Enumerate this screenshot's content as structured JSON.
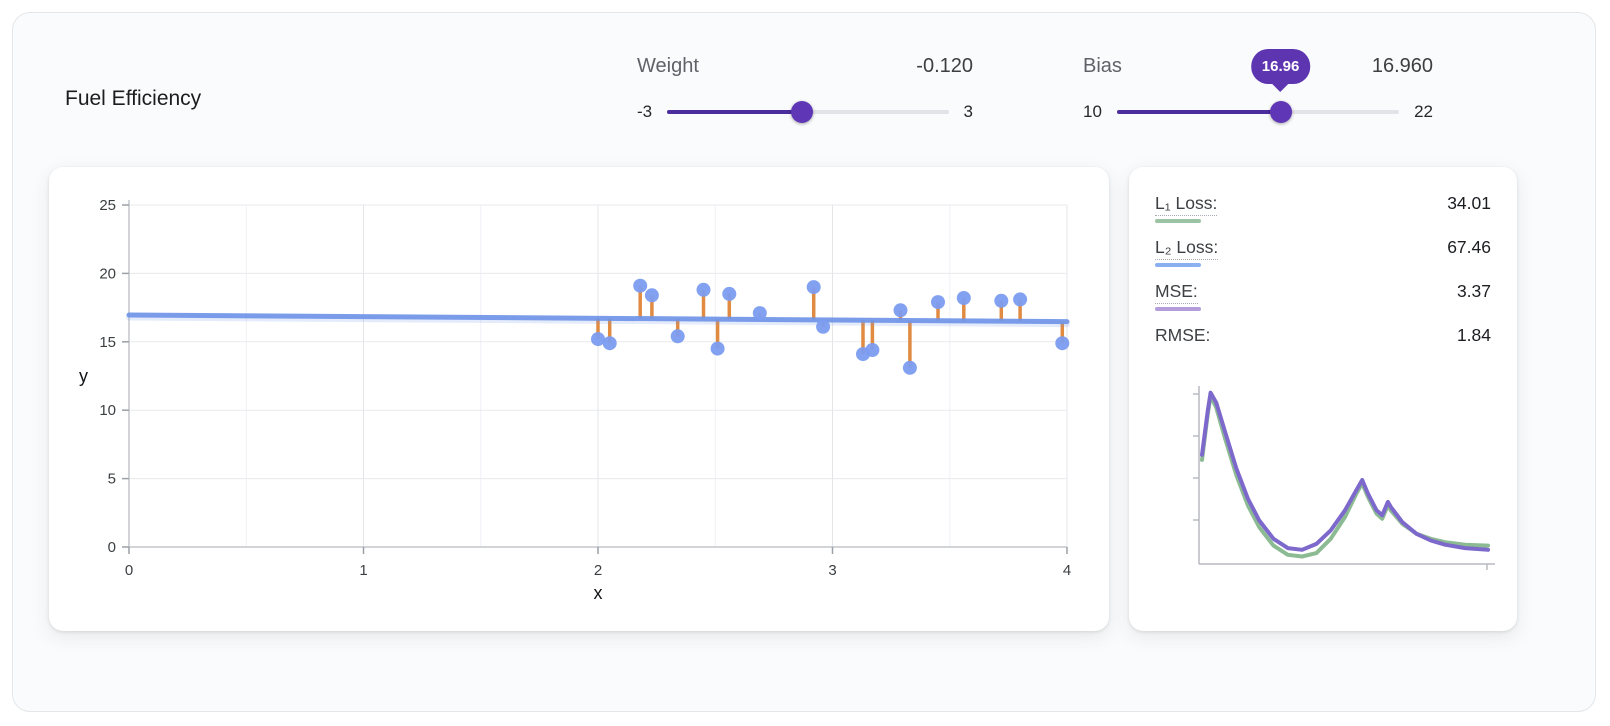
{
  "title": "Fuel Efficiency",
  "controls": {
    "weight": {
      "label": "Weight",
      "value": "-0.120",
      "min_label": "-3",
      "max_label": "3",
      "fraction": 0.48
    },
    "bias": {
      "label": "Bias",
      "value": "16.960",
      "min_label": "10",
      "max_label": "22",
      "fraction": 0.58,
      "tooltip": "16.96"
    }
  },
  "metrics": {
    "items": [
      {
        "label": "L₁ Loss:",
        "value": "34.01",
        "swatch": "#9cc4a4"
      },
      {
        "label": "L₂ Loss:",
        "value": "67.46",
        "swatch": "#8ab0f2"
      },
      {
        "label": "MSE:",
        "value": "3.37",
        "swatch": "#b39ddb"
      },
      {
        "label": "RMSE:",
        "value": "1.84",
        "swatch": ""
      }
    ]
  },
  "colors": {
    "accent_purple": "#5e35b1",
    "point_blue": "#7b9cf0",
    "line_blue": "#7095e8",
    "residual_orange": "#e08a42",
    "loss_green": "#8cbb93",
    "loss_purple": "#7d68cb"
  },
  "chart_data": [
    {
      "type": "scatter",
      "title": "Fuel Efficiency model fit",
      "xlabel": "x",
      "ylabel": "y",
      "xlim": [
        0,
        4
      ],
      "ylim": [
        0,
        25
      ],
      "xticks": [
        0,
        1,
        2,
        3,
        4
      ],
      "yticks": [
        0,
        5,
        10,
        15,
        20,
        25
      ],
      "grid": true,
      "model_line": {
        "weight": -0.12,
        "bias": 16.96
      },
      "points": [
        [
          2.0,
          15.2
        ],
        [
          2.05,
          14.9
        ],
        [
          2.18,
          19.1
        ],
        [
          2.23,
          18.4
        ],
        [
          2.34,
          15.4
        ],
        [
          2.45,
          18.8
        ],
        [
          2.51,
          14.5
        ],
        [
          2.56,
          18.5
        ],
        [
          2.69,
          17.1
        ],
        [
          2.92,
          19.0
        ],
        [
          2.96,
          16.1
        ],
        [
          3.13,
          14.1
        ],
        [
          3.17,
          14.4
        ],
        [
          3.29,
          17.3
        ],
        [
          3.33,
          13.1
        ],
        [
          3.45,
          17.9
        ],
        [
          3.56,
          18.2
        ],
        [
          3.72,
          18.0
        ],
        [
          3.8,
          18.1
        ],
        [
          3.98,
          14.9
        ]
      ]
    },
    {
      "type": "line",
      "title": "Loss history",
      "xlim": [
        0,
        100
      ],
      "ylim": [
        0,
        10
      ],
      "legend_position": "none",
      "series": [
        {
          "name": "L1 loss",
          "color": "#8cbb93",
          "points": [
            [
              0,
              5.9
            ],
            [
              2,
              8.6
            ],
            [
              3,
              9.7
            ],
            [
              5,
              9.0
            ],
            [
              8,
              7.2
            ],
            [
              12,
              5.0
            ],
            [
              16,
              3.2
            ],
            [
              20,
              1.9
            ],
            [
              25,
              0.8
            ],
            [
              30,
              0.25
            ],
            [
              35,
              0.15
            ],
            [
              40,
              0.35
            ],
            [
              45,
              1.2
            ],
            [
              50,
              2.5
            ],
            [
              54,
              3.9
            ],
            [
              56,
              4.5
            ],
            [
              58,
              3.7
            ],
            [
              61,
              2.7
            ],
            [
              63,
              2.4
            ],
            [
              65,
              3.2
            ],
            [
              66,
              2.9
            ],
            [
              70,
              2.1
            ],
            [
              75,
              1.5
            ],
            [
              80,
              1.2
            ],
            [
              85,
              1.0
            ],
            [
              92,
              0.85
            ],
            [
              100,
              0.8
            ]
          ]
        },
        {
          "name": "MSE",
          "color": "#7d68cb",
          "points": [
            [
              0,
              6.2
            ],
            [
              2,
              8.8
            ],
            [
              3,
              9.9
            ],
            [
              5,
              9.3
            ],
            [
              8,
              7.6
            ],
            [
              12,
              5.4
            ],
            [
              16,
              3.6
            ],
            [
              20,
              2.3
            ],
            [
              25,
              1.2
            ],
            [
              30,
              0.65
            ],
            [
              35,
              0.55
            ],
            [
              40,
              0.9
            ],
            [
              45,
              1.7
            ],
            [
              50,
              2.9
            ],
            [
              54,
              4.1
            ],
            [
              56,
              4.7
            ],
            [
              58,
              3.9
            ],
            [
              61,
              2.9
            ],
            [
              63,
              2.6
            ],
            [
              65,
              3.4
            ],
            [
              66,
              3.1
            ],
            [
              70,
              2.2
            ],
            [
              75,
              1.5
            ],
            [
              80,
              1.1
            ],
            [
              85,
              0.85
            ],
            [
              92,
              0.65
            ],
            [
              100,
              0.55
            ]
          ]
        }
      ]
    }
  ]
}
